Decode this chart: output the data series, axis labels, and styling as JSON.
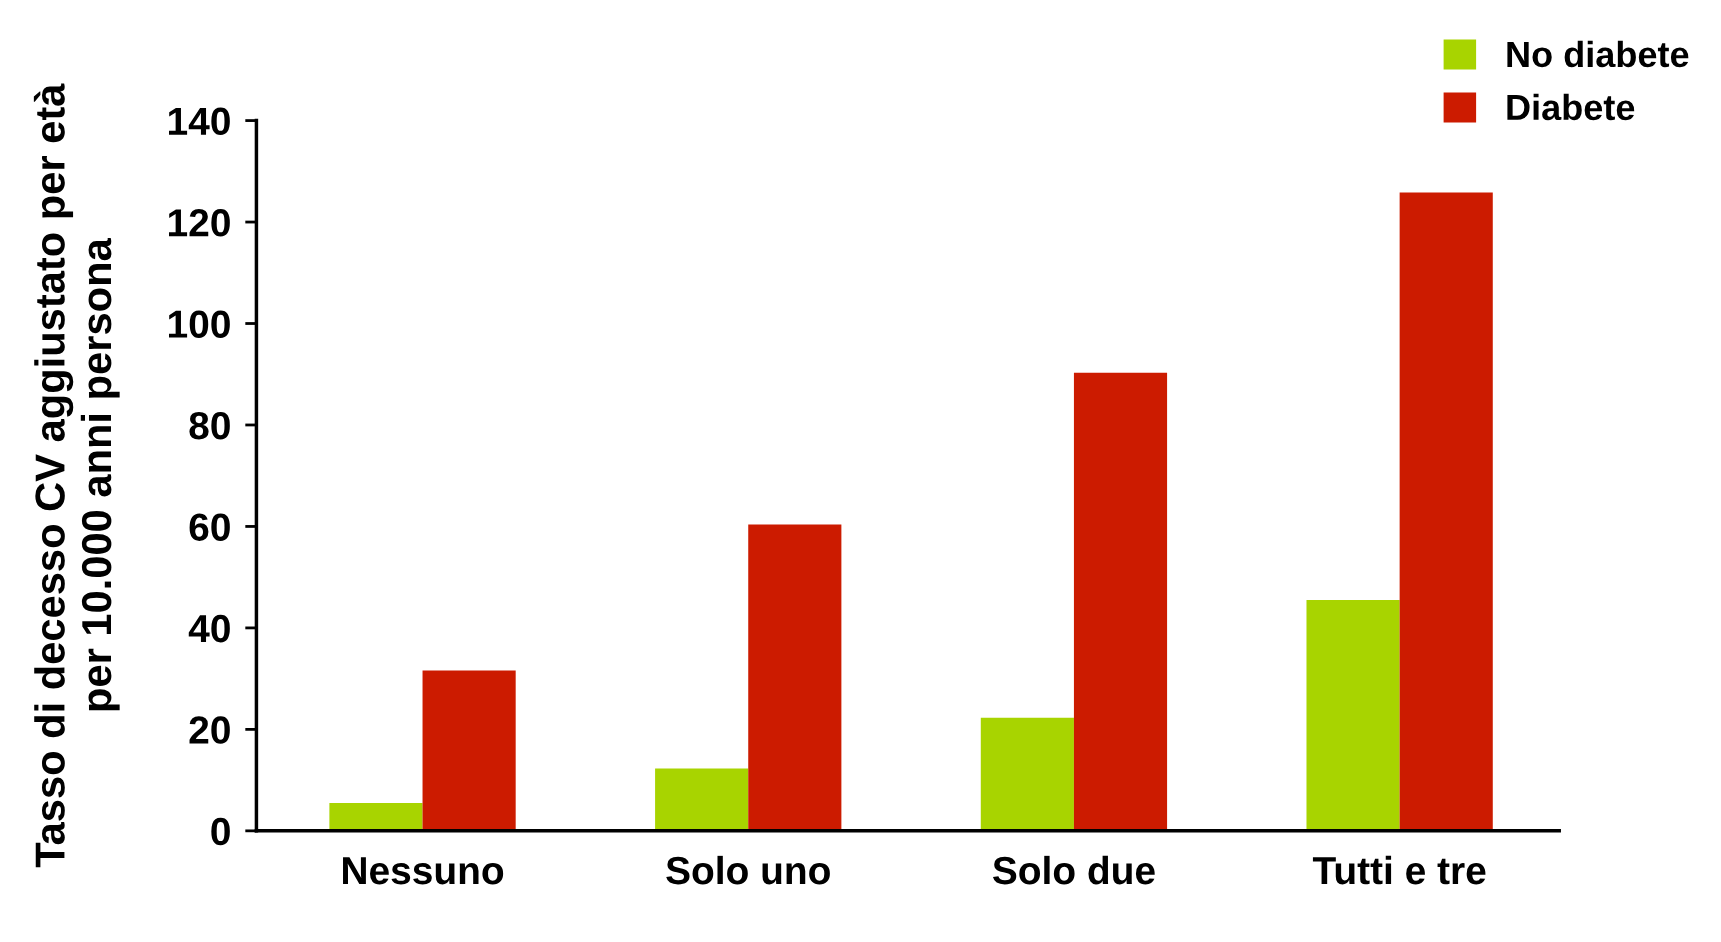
{
  "chart_data": {
    "type": "bar",
    "ylabel": "Tasso di decesso CV aggiustato per età\nper 10.000 anni persona",
    "categories": [
      "Nessuno",
      "Solo uno",
      "Solo due",
      "Tutti e tre"
    ],
    "series": [
      {
        "name": "No diabete",
        "color": "#a8d400",
        "values": [
          5.5,
          12.3,
          22.3,
          45.5
        ]
      },
      {
        "name": "Diabete",
        "color": "#cc1b00",
        "values": [
          31.6,
          60.4,
          90.3,
          125.8
        ]
      }
    ],
    "ylim": [
      0,
      140
    ],
    "yticks": [
      0,
      20,
      40,
      60,
      80,
      100,
      120,
      140
    ],
    "grid": false,
    "legend": "top right"
  }
}
